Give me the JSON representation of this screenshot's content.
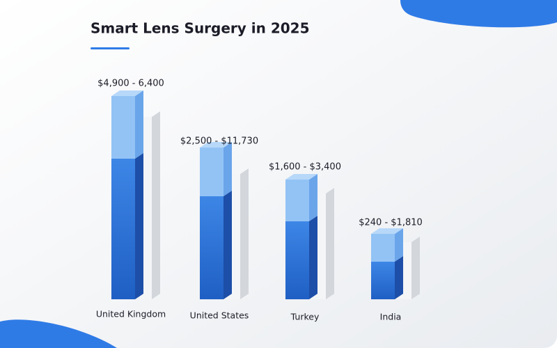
{
  "title": "Smart Lens Surgery in 2025",
  "items": [
    {
      "label": "United Kingdom",
      "price": "$4,900 - 6,400"
    },
    {
      "label": "United States",
      "price": "$2,500 - $11,730"
    },
    {
      "label": "Turkey",
      "price": "$1,600 - $3,400"
    },
    {
      "label": "India",
      "price": "$240 - $1,810"
    }
  ]
}
